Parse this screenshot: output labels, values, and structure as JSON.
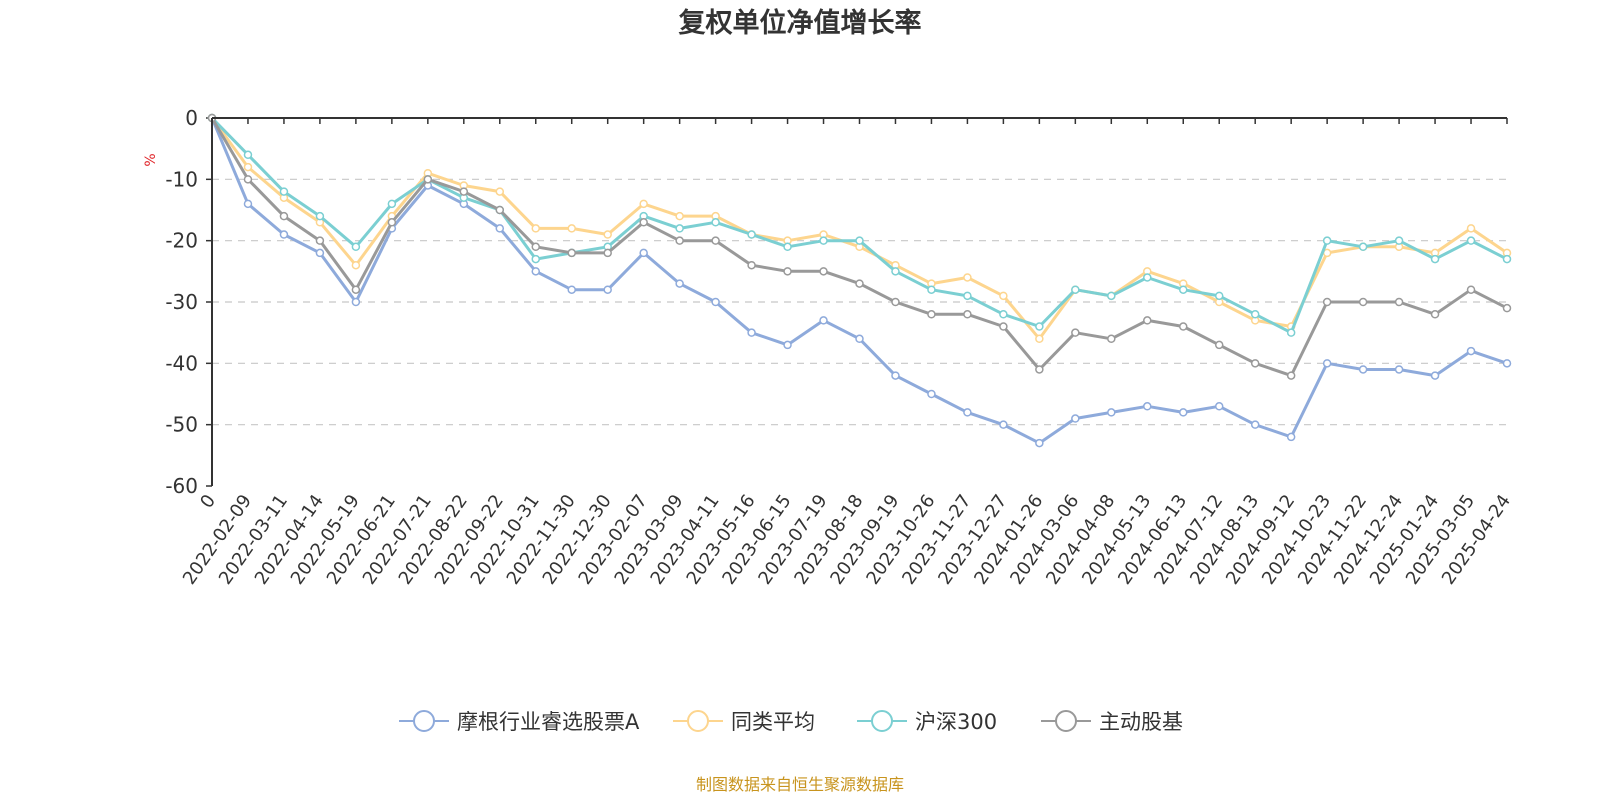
{
  "chart_data": {
    "type": "line",
    "title": "复权单位净值增长率",
    "ylabel": "%",
    "ylim": [
      -60,
      0
    ],
    "yticks": [
      0,
      -10,
      -20,
      -30,
      -40,
      -50,
      -60
    ],
    "grid": true,
    "legend_position": "bottom",
    "x_labels": [
      "0",
      "2022-02-09",
      "2022-03-11",
      "2022-04-14",
      "2022-05-19",
      "2022-06-21",
      "2022-07-21",
      "2022-08-22",
      "2022-09-22",
      "2022-10-31",
      "2022-11-30",
      "2022-12-30",
      "2023-02-07",
      "2023-03-09",
      "2023-04-11",
      "2023-05-16",
      "2023-06-15",
      "2023-07-19",
      "2023-08-18",
      "2023-09-19",
      "2023-10-26",
      "2023-11-27",
      "2023-12-27",
      "2024-01-26",
      "2024-03-06",
      "2024-04-08",
      "2024-05-13",
      "2024-06-13",
      "2024-07-12",
      "2024-08-13",
      "2024-09-12",
      "2024-10-23",
      "2024-11-22",
      "2024-12-24",
      "2025-01-24",
      "2025-03-05",
      "2025-04-24"
    ],
    "series": [
      {
        "name": "摩根行业睿选股票A",
        "color": "#8eaadb",
        "values": [
          0,
          -14,
          -19,
          -22,
          -30,
          -18,
          -11,
          -14,
          -18,
          -25,
          -28,
          -28,
          -22,
          -27,
          -30,
          -35,
          -37,
          -33,
          -36,
          -42,
          -45,
          -48,
          -50,
          -53,
          -49,
          -48,
          -47,
          -48,
          -47,
          -50,
          -52,
          -40,
          -41,
          -41,
          -42,
          -38,
          -40
        ]
      },
      {
        "name": "同类平均",
        "color": "#fdd58e",
        "values": [
          0,
          -8,
          -13,
          -17,
          -24,
          -16,
          -9,
          -11,
          -12,
          -18,
          -18,
          -19,
          -14,
          -16,
          -16,
          -19,
          -20,
          -19,
          -21,
          -24,
          -27,
          -26,
          -29,
          -36,
          -28,
          -29,
          -25,
          -27,
          -30,
          -33,
          -34,
          -22,
          -21,
          -21,
          -22,
          -18,
          -22
        ]
      },
      {
        "name": "沪深300",
        "color": "#7bcfd2",
        "values": [
          0,
          -6,
          -12,
          -16,
          -21,
          -14,
          -10,
          -13,
          -15,
          -23,
          -22,
          -21,
          -16,
          -18,
          -17,
          -19,
          -21,
          -20,
          -20,
          -25,
          -28,
          -29,
          -32,
          -34,
          -28,
          -29,
          -26,
          -28,
          -29,
          -32,
          -35,
          -20,
          -21,
          -20,
          -23,
          -20,
          -23
        ]
      },
      {
        "name": "主动股基",
        "color": "#999999",
        "values": [
          0,
          -10,
          -16,
          -20,
          -28,
          -17,
          -10,
          -12,
          -15,
          -21,
          -22,
          -22,
          -17,
          -20,
          -20,
          -24,
          -25,
          -25,
          -27,
          -30,
          -32,
          -32,
          -34,
          -41,
          -35,
          -36,
          -33,
          -34,
          -37,
          -40,
          -42,
          -30,
          -30,
          -30,
          -32,
          -28,
          -31
        ]
      }
    ]
  },
  "source_note": "制图数据来自恒生聚源数据库"
}
